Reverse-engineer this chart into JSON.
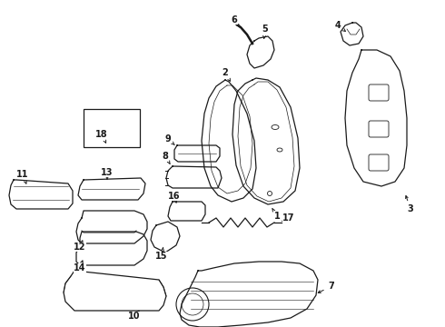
{
  "background_color": "#ffffff",
  "line_color": "#1a1a1a",
  "figsize": [
    4.9,
    3.6
  ],
  "dpi": 100,
  "xlim": [
    0,
    490
  ],
  "ylim": [
    0,
    360
  ]
}
